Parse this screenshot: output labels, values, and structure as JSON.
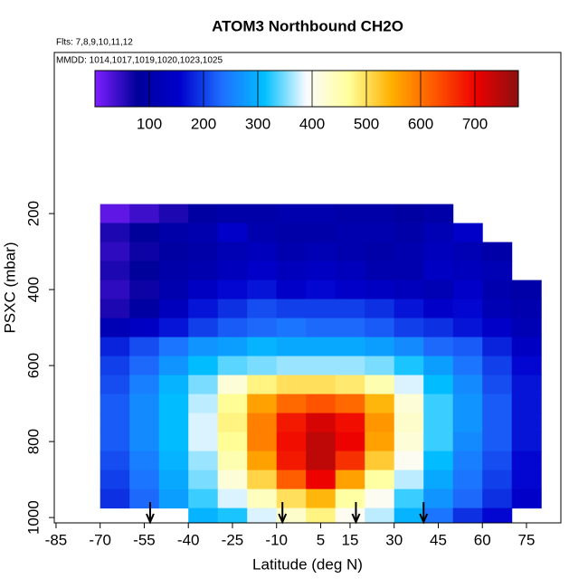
{
  "chart_data": {
    "type": "heatmap",
    "title": "ATOM3 Northbound CH2O",
    "subtitle": "Flts: 7,8,9,10,11,12",
    "annotation": "MMDD: 1014,1017,1019,1020,1023,1025",
    "x_label": "Latitude (deg N)",
    "y_label": "PSXC (mbar)",
    "xlim": [
      -85.6,
      86.7
    ],
    "ylim": [
      1014,
      -224
    ],
    "xticks": [
      -85,
      -70,
      -55,
      -40,
      -25,
      -10,
      5,
      15,
      30,
      45,
      60,
      75
    ],
    "yticks": [
      200,
      400,
      600,
      800,
      1000
    ],
    "clim": [
      0,
      780
    ],
    "cticks": [
      100,
      200,
      300,
      400,
      500,
      600,
      700
    ],
    "colormap": [
      "#7f1fff",
      "#00009a",
      "#0000cd",
      "#1e6fff",
      "#00bfff",
      "#fbfbff",
      "#ffff9a",
      "#ffb000",
      "#ff5a00",
      "#ee0000",
      "#8b1010"
    ],
    "markers": [
      -53,
      -8,
      17,
      40
    ],
    "x": [
      -65,
      -55,
      -45,
      -35,
      -25,
      -15,
      -5,
      5,
      15,
      25,
      35,
      45,
      55,
      65,
      75
    ],
    "y": [
      200,
      250,
      300,
      350,
      400,
      450,
      500,
      550,
      600,
      650,
      700,
      750,
      800,
      850,
      900,
      950,
      1000
    ],
    "z": [
      [
        20,
        40,
        60,
        90,
        100,
        100,
        110,
        110,
        100,
        100,
        90,
        100,
        null,
        null,
        null
      ],
      [
        60,
        80,
        100,
        110,
        150,
        110,
        100,
        100,
        110,
        110,
        100,
        120,
        150,
        null,
        null
      ],
      [
        50,
        70,
        90,
        100,
        120,
        130,
        110,
        120,
        110,
        100,
        110,
        130,
        120,
        100,
        null
      ],
      [
        60,
        80,
        100,
        110,
        130,
        150,
        130,
        140,
        130,
        110,
        110,
        140,
        130,
        120,
        null
      ],
      [
        50,
        70,
        110,
        140,
        160,
        170,
        150,
        160,
        150,
        140,
        130,
        120,
        150,
        110,
        100
      ],
      [
        60,
        90,
        130,
        170,
        190,
        210,
        200,
        200,
        200,
        190,
        170,
        150,
        160,
        120,
        110
      ],
      [
        120,
        140,
        170,
        200,
        220,
        230,
        240,
        230,
        230,
        220,
        200,
        190,
        170,
        150,
        120
      ],
      [
        180,
        210,
        240,
        270,
        280,
        300,
        290,
        290,
        290,
        280,
        260,
        230,
        220,
        180,
        140
      ],
      [
        200,
        230,
        270,
        310,
        340,
        350,
        360,
        360,
        360,
        350,
        320,
        280,
        240,
        200,
        160
      ],
      [
        210,
        250,
        300,
        350,
        420,
        480,
        500,
        500,
        490,
        450,
        380,
        310,
        260,
        210,
        170
      ],
      [
        220,
        260,
        310,
        370,
        470,
        560,
        610,
        630,
        610,
        540,
        420,
        330,
        270,
        220,
        170
      ],
      [
        220,
        260,
        310,
        380,
        480,
        590,
        680,
        720,
        690,
        570,
        430,
        330,
        270,
        220,
        170
      ],
      [
        220,
        260,
        310,
        380,
        470,
        590,
        690,
        740,
        700,
        560,
        420,
        330,
        260,
        220,
        170
      ],
      [
        210,
        250,
        300,
        360,
        450,
        560,
        680,
        740,
        660,
        520,
        400,
        310,
        250,
        210,
        160
      ],
      [
        200,
        240,
        290,
        350,
        420,
        510,
        620,
        700,
        560,
        460,
        370,
        290,
        240,
        200,
        160
      ],
      [
        190,
        230,
        280,
        330,
        380,
        440,
        500,
        540,
        460,
        400,
        330,
        270,
        230,
        190,
        150
      ],
      [
        null,
        null,
        null,
        300,
        320,
        380,
        430,
        480,
        400,
        370,
        300,
        240,
        190,
        160,
        null
      ]
    ]
  }
}
